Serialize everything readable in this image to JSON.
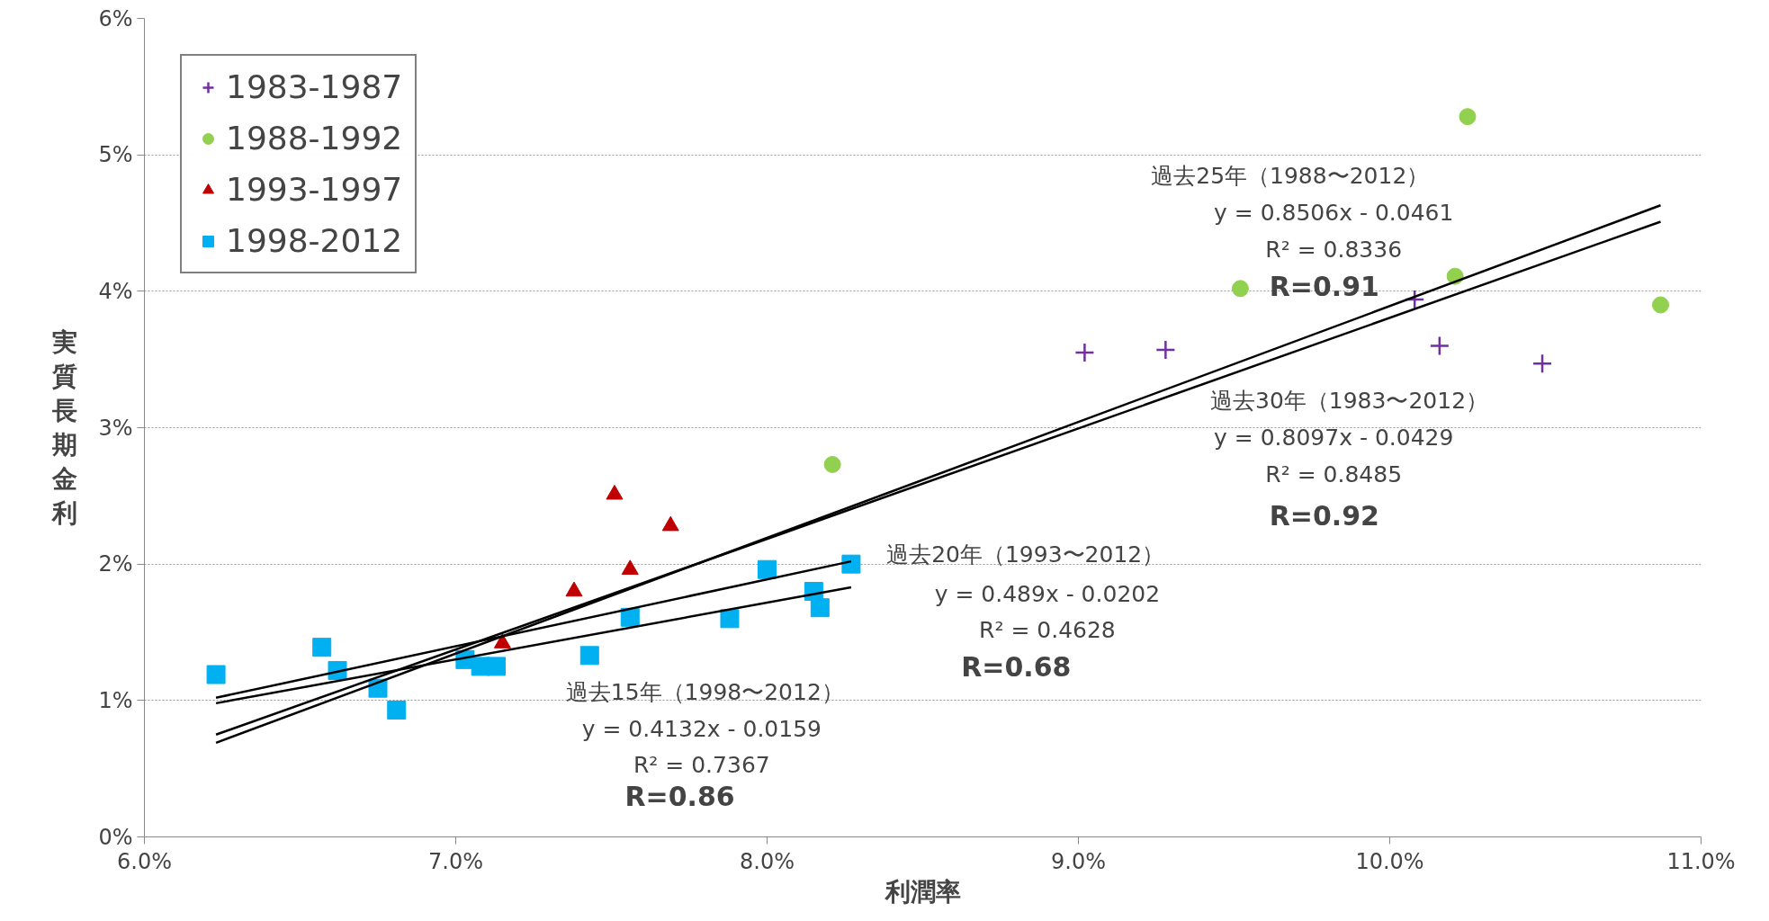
{
  "chart_data": {
    "type": "scatter",
    "xlabel": "利潤率",
    "ylabel": "実質長期金利",
    "xlim": [
      0.06,
      0.11
    ],
    "xticks": [
      {
        "value": 0.06,
        "label": "6.0%"
      },
      {
        "value": 0.07,
        "label": "7.0%"
      },
      {
        "value": 0.08,
        "label": "8.0%"
      },
      {
        "value": 0.09,
        "label": "9.0%"
      },
      {
        "value": 0.1,
        "label": "10.0%"
      },
      {
        "value": 0.11,
        "label": "11.0%"
      }
    ],
    "ylim": [
      0,
      0.06
    ],
    "yticks": [
      {
        "value": 0,
        "label": "0%"
      },
      {
        "value": 0.01,
        "label": "1%"
      },
      {
        "value": 0.02,
        "label": "2%"
      },
      {
        "value": 0.03,
        "label": "3%"
      },
      {
        "value": 0.04,
        "label": "4%"
      },
      {
        "value": 0.05,
        "label": "5%"
      },
      {
        "value": 0.06,
        "label": "6%"
      }
    ],
    "grid": "y",
    "legend": "top left",
    "series": [
      {
        "name": "1983-1987",
        "color": "#7030a0",
        "marker": "cross",
        "x": [
          0.0902,
          0.0928,
          0.1008,
          0.1016,
          0.1049
        ],
        "values": [
          0.0355,
          0.0357,
          0.0394,
          0.036,
          0.0347
        ]
      },
      {
        "name": "1988-1992",
        "color": "#92d050",
        "marker": "circle",
        "x": [
          0.1025,
          0.0952,
          0.1021,
          0.1087,
          0.0821
        ],
        "values": [
          0.0528,
          0.0402,
          0.0411,
          0.039,
          0.0273
        ]
      },
      {
        "name": "1993-1997",
        "color": "#c00000",
        "marker": "triangle",
        "x": [
          0.0751,
          0.0769,
          0.0756,
          0.0738,
          0.0715
        ],
        "values": [
          0.0251,
          0.0228,
          0.0196,
          0.018,
          0.0142
        ]
      },
      {
        "name": "1998-2012",
        "color": "#00b0f0",
        "marker": "square",
        "x": [
          0.0623,
          0.0657,
          0.0662,
          0.0675,
          0.0681,
          0.0703,
          0.0708,
          0.0713,
          0.0743,
          0.0756,
          0.0788,
          0.08,
          0.0815,
          0.0817,
          0.0827
        ],
        "values": [
          0.0119,
          0.0139,
          0.0122,
          0.0109,
          0.0093,
          0.013,
          0.0125,
          0.0125,
          0.0133,
          0.0161,
          0.016,
          0.0196,
          0.018,
          0.0168,
          0.02
        ]
      },
      {
        "type": "line",
        "color": "#000000",
        "marker": "none",
        "x": [
          0.0623,
          0.1087
        ],
        "values": [
          0.0075,
          0.0451
        ]
      },
      {
        "type": "line",
        "color": "#000000",
        "marker": "none",
        "x": [
          0.0623,
          0.1087
        ],
        "values": [
          0.0069,
          0.0463
        ]
      },
      {
        "type": "line",
        "color": "#000000",
        "marker": "none",
        "x": [
          0.0623,
          0.0827
        ],
        "values": [
          0.0102,
          0.0202
        ]
      },
      {
        "type": "line",
        "color": "#000000",
        "marker": "none",
        "x": [
          0.0623,
          0.0827
        ],
        "values": [
          0.0098,
          0.0183
        ]
      }
    ],
    "annotations": [
      "過去25年（1988〜2012）",
      "y = 0.8506x - 0.0461",
      "R² = 0.8336",
      "R=0.91",
      "過去30年（1983〜2012）",
      "y = 0.8097x - 0.0429",
      "R² = 0.8485",
      "R=0.92",
      "過去20年（1993〜2012）",
      "y = 0.489x - 0.0202",
      "R² = 0.4628",
      "R=0.68",
      "過去15年（1998〜2012）",
      "y = 0.4132x - 0.0159",
      "R² = 0.7367",
      "R=0.86"
    ]
  }
}
